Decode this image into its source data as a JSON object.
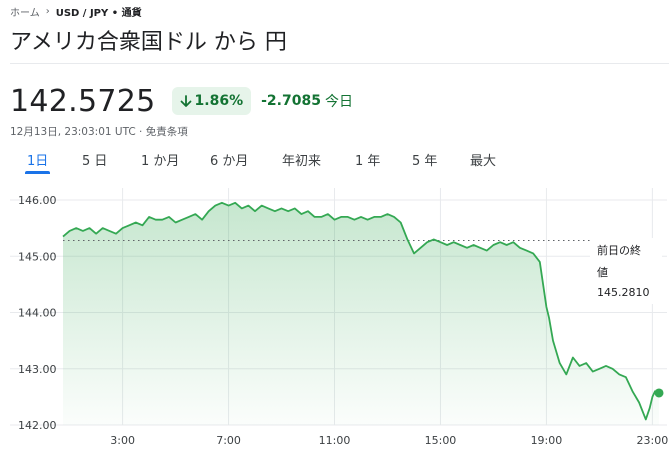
{
  "breadcrumb": {
    "home": "ホーム",
    "pair": "USD / JPY • 通貨"
  },
  "title": "アメリカ合衆国ドル から 円",
  "quote": {
    "price": "142.5725",
    "percent_change": "1.86%",
    "abs_change": "-2.7085",
    "period": "今日",
    "timestamp": "12月13日, 23:03:01 UTC · 免責条項"
  },
  "colors": {
    "up_green": "#137333",
    "line_green": "#34a853",
    "tab_blue": "#1a73e8"
  },
  "tabs": [
    {
      "label": "1日",
      "active": true
    },
    {
      "label": "5 日",
      "active": false
    },
    {
      "label": "1 か月",
      "active": false
    },
    {
      "label": "6 か月",
      "active": false
    },
    {
      "label": "年初来",
      "active": false
    },
    {
      "label": "1 年",
      "active": false
    },
    {
      "label": "5 年",
      "active": false
    },
    {
      "label": "最大",
      "active": false
    }
  ],
  "chart_data": {
    "type": "area",
    "ylim": [
      142.0,
      146.0
    ],
    "yticks": [
      "146.00",
      "145.00",
      "144.00",
      "143.00",
      "142.00"
    ],
    "xlim": [
      0.75,
      23.25
    ],
    "xticks": [
      {
        "x": 3,
        "label": "3:00"
      },
      {
        "x": 7,
        "label": "7:00"
      },
      {
        "x": 11,
        "label": "11:00"
      },
      {
        "x": 15,
        "label": "15:00"
      },
      {
        "x": 19,
        "label": "19:00"
      },
      {
        "x": 23,
        "label": "23:00"
      }
    ],
    "previous_close": {
      "label_line1": "前日の終",
      "label_line2": "値",
      "value_text": "145.2810",
      "value": 145.281
    },
    "grid": true,
    "series": [
      {
        "x": [
          0.75,
          1.0,
          1.25,
          1.5,
          1.75,
          2.0,
          2.25,
          2.5,
          2.75,
          3.0,
          3.25,
          3.5,
          3.75,
          4.0,
          4.25,
          4.5,
          4.75,
          5.0,
          5.25,
          5.5,
          5.75,
          6.0,
          6.25,
          6.5,
          6.75,
          7.0,
          7.25,
          7.5,
          7.75,
          8.0,
          8.25,
          8.5,
          8.75,
          9.0,
          9.25,
          9.5,
          9.75,
          10.0,
          10.25,
          10.5,
          10.75,
          11.0,
          11.25,
          11.5,
          11.75,
          12.0,
          12.25,
          12.5,
          12.75,
          13.0,
          13.25,
          13.5,
          13.75,
          14.0,
          14.25,
          14.5,
          14.75,
          15.0,
          15.25,
          15.5,
          15.75,
          16.0,
          16.25,
          16.5,
          16.75,
          17.0,
          17.25,
          17.5,
          17.75,
          18.0,
          18.25,
          18.5,
          18.75,
          19.0,
          19.1,
          19.25,
          19.5,
          19.75,
          20.0,
          20.25,
          20.5,
          20.75,
          21.0,
          21.25,
          21.5,
          21.75,
          22.0,
          22.25,
          22.5,
          22.75,
          22.9,
          23.0,
          23.1,
          23.25
        ],
        "y": [
          145.35,
          145.45,
          145.5,
          145.45,
          145.5,
          145.4,
          145.5,
          145.45,
          145.4,
          145.5,
          145.55,
          145.6,
          145.55,
          145.7,
          145.65,
          145.65,
          145.7,
          145.6,
          145.65,
          145.7,
          145.75,
          145.65,
          145.8,
          145.9,
          145.95,
          145.9,
          145.95,
          145.85,
          145.9,
          145.8,
          145.9,
          145.85,
          145.8,
          145.85,
          145.8,
          145.85,
          145.75,
          145.8,
          145.7,
          145.7,
          145.75,
          145.65,
          145.7,
          145.7,
          145.65,
          145.7,
          145.65,
          145.7,
          145.7,
          145.75,
          145.7,
          145.6,
          145.3,
          145.05,
          145.15,
          145.25,
          145.3,
          145.25,
          145.2,
          145.25,
          145.2,
          145.15,
          145.2,
          145.15,
          145.1,
          145.2,
          145.25,
          145.2,
          145.25,
          145.15,
          145.1,
          145.05,
          144.9,
          144.1,
          143.9,
          143.5,
          143.1,
          142.9,
          143.2,
          143.05,
          143.1,
          142.95,
          143.0,
          143.05,
          143.0,
          142.9,
          142.85,
          142.6,
          142.4,
          142.1,
          142.3,
          142.5,
          142.6,
          142.57
        ]
      }
    ]
  }
}
